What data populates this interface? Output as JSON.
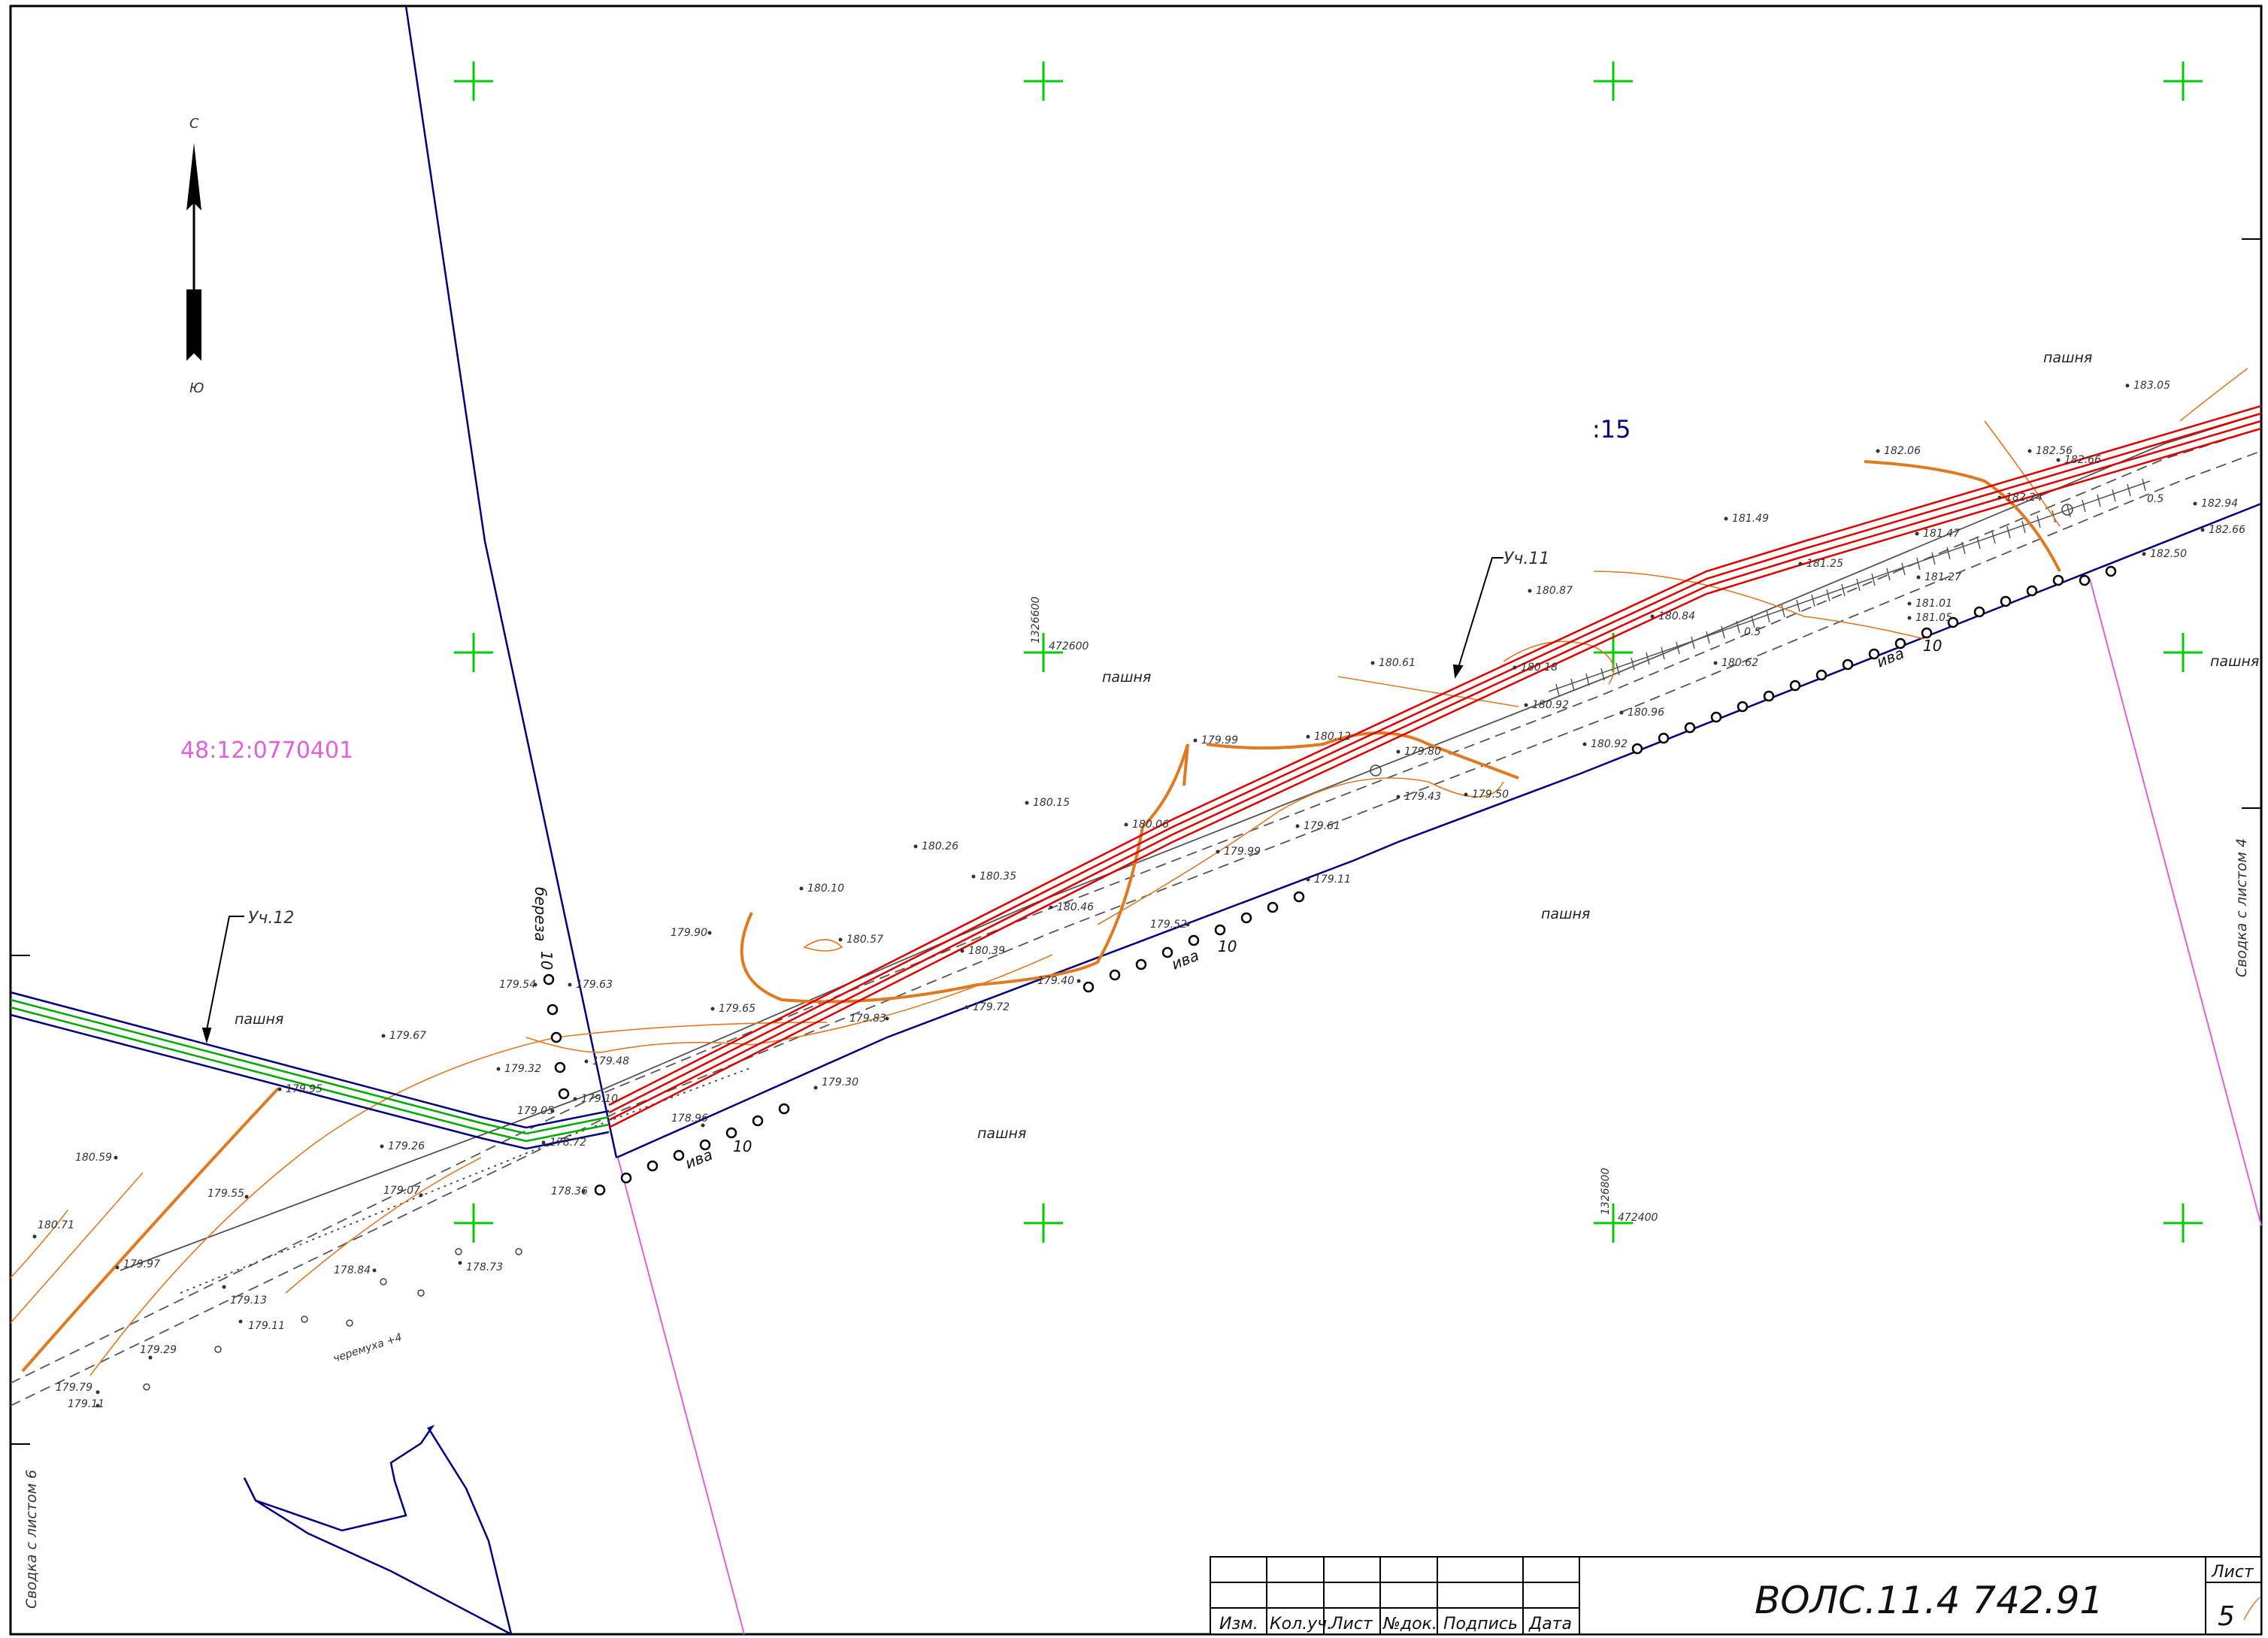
{
  "north_arrow": {
    "north": "С",
    "south": "Ю"
  },
  "cadastral_number": "48:12:0770401",
  "parcel_number": ":15",
  "sections": {
    "uch12": "Уч.12",
    "uch11": "Уч.11"
  },
  "side_labels": {
    "right": "Сводка с листом 4",
    "left": "Сводка с листом 6"
  },
  "area_labels": [
    "пашня",
    "пашня",
    "пашня",
    "пашня",
    "пашня",
    "пашня"
  ],
  "tree_labels": {
    "iva": "ива",
    "iva_size": "10",
    "bereza": "береза",
    "cheremukha": "черемуха +4"
  },
  "coords": {
    "c1_x": "1326600",
    "c1_y": "472600",
    "c2_x": "1326800",
    "c2_y": "472400"
  },
  "markers": {
    "half": "0.5"
  },
  "elevations": [
    "183.05",
    "182.06",
    "182.56",
    "182.24",
    "182.66",
    "182.94",
    "182.66",
    "182.50",
    "181.49",
    "181.47",
    "181.25",
    "181.27",
    "181.01",
    "181.05",
    "180.87",
    "180.84",
    "180.62",
    "180.61",
    "180.18",
    "180.92",
    "180.96",
    "180.92",
    "179.99",
    "180.12",
    "179.80",
    "179.43",
    "179.50",
    "180.15",
    "180.06",
    "180.26",
    "180.35",
    "180.10",
    "180.46",
    "179.61",
    "179.99",
    "179.90",
    "180.57",
    "180.39",
    "179.52",
    "179.65",
    "179.72",
    "179.83",
    "179.11",
    "179.54",
    "179.63",
    "179.67",
    "179.32",
    "179.48",
    "179.95",
    "179.05",
    "179.10",
    "178.72",
    "178.96",
    "179.30",
    "178.36",
    "180.59",
    "180.71",
    "179.55",
    "179.26",
    "179.07",
    "179.97",
    "178.84",
    "178.73",
    "179.13",
    "179.11",
    "179.29",
    "179.79",
    "179.11",
    "179.40"
  ],
  "title_block": {
    "code": "ВОЛС.11.4 742.91",
    "sheet_label": "Лист",
    "sheet_no": "5",
    "headers": [
      "Изм.",
      "Кол.уч.",
      "Лист",
      "№док.",
      "Подпись",
      "Дата"
    ]
  },
  "colors": {
    "frame": "#000000",
    "grid_cross": "#00cc00",
    "boundary": "#000080",
    "cable": "#e00000",
    "cable_left": "#00aa00",
    "contour": "#e07a20",
    "cadastral": "#e060e0",
    "road": "#555555"
  }
}
